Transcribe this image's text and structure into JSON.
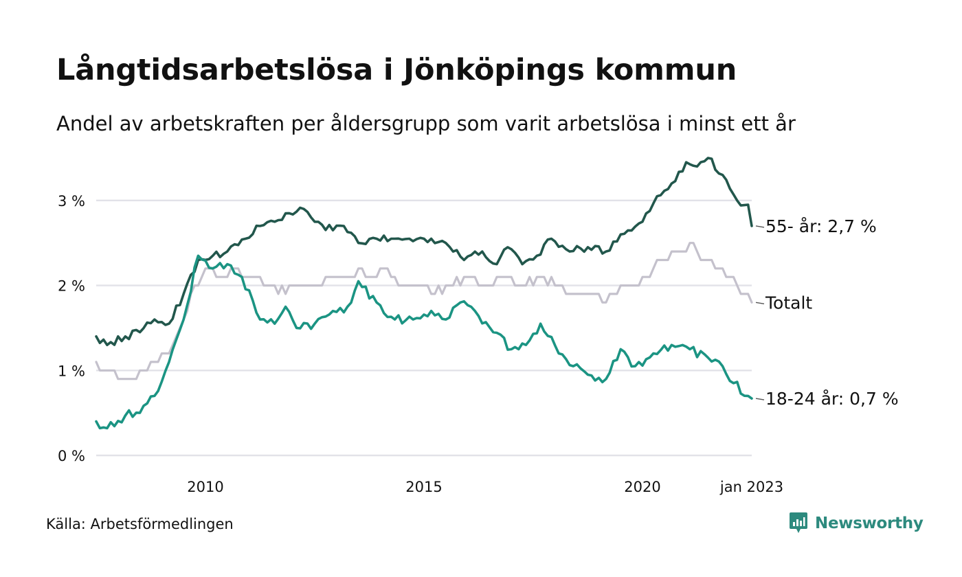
{
  "title": "Långtidsarbetslösa i Jönköpings kommun",
  "subtitle": "Andel av arbetskraften per åldersgrupp som varit arbetslösa i minst ett år",
  "source": "Källa: Arbetsförmedlingen",
  "brand": {
    "name": "Newsworthy",
    "icon": "newsworthy-bar-chart-icon",
    "color": "#2d8a7e"
  },
  "chart_data": {
    "type": "line",
    "x_start": "2008-01",
    "x_end": "2023-01",
    "x_tick_years": [
      2010,
      2015,
      2020
    ],
    "x_tick_labels": [
      "2010",
      "2015",
      "2020",
      "jan 2023"
    ],
    "ylim": [
      0,
      3.5
    ],
    "y_ticks": [
      0,
      1,
      2,
      3
    ],
    "y_tick_labels": [
      "0 %",
      "1 %",
      "2 %",
      "3 %"
    ],
    "grid": "horizontal",
    "legend": "end-of-line labels",
    "series": [
      {
        "name": "Totalt",
        "end_label": "Totalt",
        "color": "#c4c1cc",
        "keypoints": [
          [
            "2008-01",
            1.1
          ],
          [
            "2008-03",
            1.0
          ],
          [
            "2008-11",
            0.9
          ],
          [
            "2009-01",
            1.0
          ],
          [
            "2009-05",
            1.1
          ],
          [
            "2009-09",
            1.2
          ],
          [
            "2010-01",
            1.6
          ],
          [
            "2010-04",
            2.0
          ],
          [
            "2010-08",
            2.2
          ],
          [
            "2011-01",
            2.1
          ],
          [
            "2011-03",
            2.2
          ],
          [
            "2011-07",
            2.1
          ],
          [
            "2012-01",
            2.0
          ],
          [
            "2012-05",
            1.9
          ],
          [
            "2012-09",
            2.0
          ],
          [
            "2013-01",
            2.0
          ],
          [
            "2013-05",
            2.1
          ],
          [
            "2013-10",
            2.1
          ],
          [
            "2014-01",
            2.2
          ],
          [
            "2014-05",
            2.1
          ],
          [
            "2014-09",
            2.2
          ],
          [
            "2015-01",
            2.0
          ],
          [
            "2015-06",
            2.0
          ],
          [
            "2015-10",
            1.9
          ],
          [
            "2016-02",
            2.0
          ],
          [
            "2016-07",
            2.1
          ],
          [
            "2016-11",
            2.0
          ],
          [
            "2017-06",
            2.1
          ],
          [
            "2017-09",
            2.0
          ],
          [
            "2018-02",
            2.1
          ],
          [
            "2018-08",
            2.0
          ],
          [
            "2019-01",
            1.9
          ],
          [
            "2019-06",
            1.9
          ],
          [
            "2019-09",
            1.8
          ],
          [
            "2020-01",
            2.0
          ],
          [
            "2020-07",
            2.1
          ],
          [
            "2021-01",
            2.3
          ],
          [
            "2021-04",
            2.4
          ],
          [
            "2021-09",
            2.5
          ],
          [
            "2021-12",
            2.3
          ],
          [
            "2022-04",
            2.2
          ],
          [
            "2022-07",
            2.1
          ],
          [
            "2022-09",
            2.0
          ],
          [
            "2022-12",
            1.9
          ],
          [
            "2023-01",
            1.8
          ]
        ]
      },
      {
        "name": "55- år",
        "end_label": "55- år: 2,7 %",
        "color": "#22574c",
        "keypoints": [
          [
            "2008-01",
            1.4
          ],
          [
            "2008-04",
            1.3
          ],
          [
            "2008-09",
            1.4
          ],
          [
            "2009-01",
            1.45
          ],
          [
            "2009-05",
            1.6
          ],
          [
            "2009-09",
            1.55
          ],
          [
            "2010-01",
            1.9
          ],
          [
            "2010-05",
            2.3
          ],
          [
            "2010-09",
            2.35
          ],
          [
            "2011-01",
            2.4
          ],
          [
            "2011-06",
            2.55
          ],
          [
            "2011-10",
            2.7
          ],
          [
            "2012-02",
            2.75
          ],
          [
            "2012-06",
            2.85
          ],
          [
            "2012-10",
            2.9
          ],
          [
            "2013-01",
            2.75
          ],
          [
            "2013-06",
            2.65
          ],
          [
            "2013-09",
            2.7
          ],
          [
            "2014-01",
            2.5
          ],
          [
            "2014-06",
            2.55
          ],
          [
            "2014-10",
            2.55
          ],
          [
            "2015-03",
            2.55
          ],
          [
            "2015-09",
            2.55
          ],
          [
            "2016-01",
            2.5
          ],
          [
            "2016-06",
            2.3
          ],
          [
            "2016-11",
            2.4
          ],
          [
            "2017-03",
            2.25
          ],
          [
            "2017-06",
            2.45
          ],
          [
            "2017-10",
            2.25
          ],
          [
            "2018-02",
            2.35
          ],
          [
            "2018-06",
            2.55
          ],
          [
            "2018-11",
            2.4
          ],
          [
            "2019-04",
            2.45
          ],
          [
            "2019-09",
            2.4
          ],
          [
            "2020-01",
            2.6
          ],
          [
            "2020-07",
            2.75
          ],
          [
            "2020-11",
            3.05
          ],
          [
            "2021-03",
            3.2
          ],
          [
            "2021-07",
            3.45
          ],
          [
            "2021-10",
            3.4
          ],
          [
            "2022-01",
            3.5
          ],
          [
            "2022-05",
            3.3
          ],
          [
            "2022-09",
            3.0
          ],
          [
            "2022-12",
            2.95
          ],
          [
            "2023-01",
            2.7
          ]
        ]
      },
      {
        "name": "18-24 år",
        "end_label": "18-24 år: 0,7 %",
        "color": "#1b9483",
        "keypoints": [
          [
            "2008-01",
            0.4
          ],
          [
            "2008-04",
            0.32
          ],
          [
            "2008-09",
            0.47
          ],
          [
            "2009-01",
            0.5
          ],
          [
            "2009-05",
            0.7
          ],
          [
            "2009-09",
            1.1
          ],
          [
            "2010-01",
            1.6
          ],
          [
            "2010-05",
            2.35
          ],
          [
            "2010-09",
            2.2
          ],
          [
            "2011-01",
            2.25
          ],
          [
            "2011-05",
            2.1
          ],
          [
            "2011-10",
            1.6
          ],
          [
            "2012-02",
            1.55
          ],
          [
            "2012-05",
            1.75
          ],
          [
            "2012-08",
            1.5
          ],
          [
            "2013-01",
            1.55
          ],
          [
            "2013-06",
            1.7
          ],
          [
            "2013-10",
            1.75
          ],
          [
            "2014-01",
            2.05
          ],
          [
            "2014-06",
            1.8
          ],
          [
            "2014-11",
            1.6
          ],
          [
            "2015-04",
            1.6
          ],
          [
            "2015-09",
            1.7
          ],
          [
            "2016-01",
            1.6
          ],
          [
            "2016-05",
            1.8
          ],
          [
            "2016-09",
            1.7
          ],
          [
            "2017-02",
            1.45
          ],
          [
            "2017-07",
            1.25
          ],
          [
            "2017-11",
            1.3
          ],
          [
            "2018-03",
            1.55
          ],
          [
            "2018-08",
            1.2
          ],
          [
            "2018-12",
            1.05
          ],
          [
            "2019-04",
            0.95
          ],
          [
            "2019-09",
            0.9
          ],
          [
            "2020-01",
            1.25
          ],
          [
            "2020-05",
            1.05
          ],
          [
            "2020-10",
            1.2
          ],
          [
            "2021-03",
            1.3
          ],
          [
            "2021-08",
            1.25
          ],
          [
            "2022-01",
            1.15
          ],
          [
            "2022-05",
            1.05
          ],
          [
            "2022-08",
            0.85
          ],
          [
            "2022-12",
            0.7
          ],
          [
            "2023-01",
            0.67
          ]
        ]
      }
    ]
  }
}
